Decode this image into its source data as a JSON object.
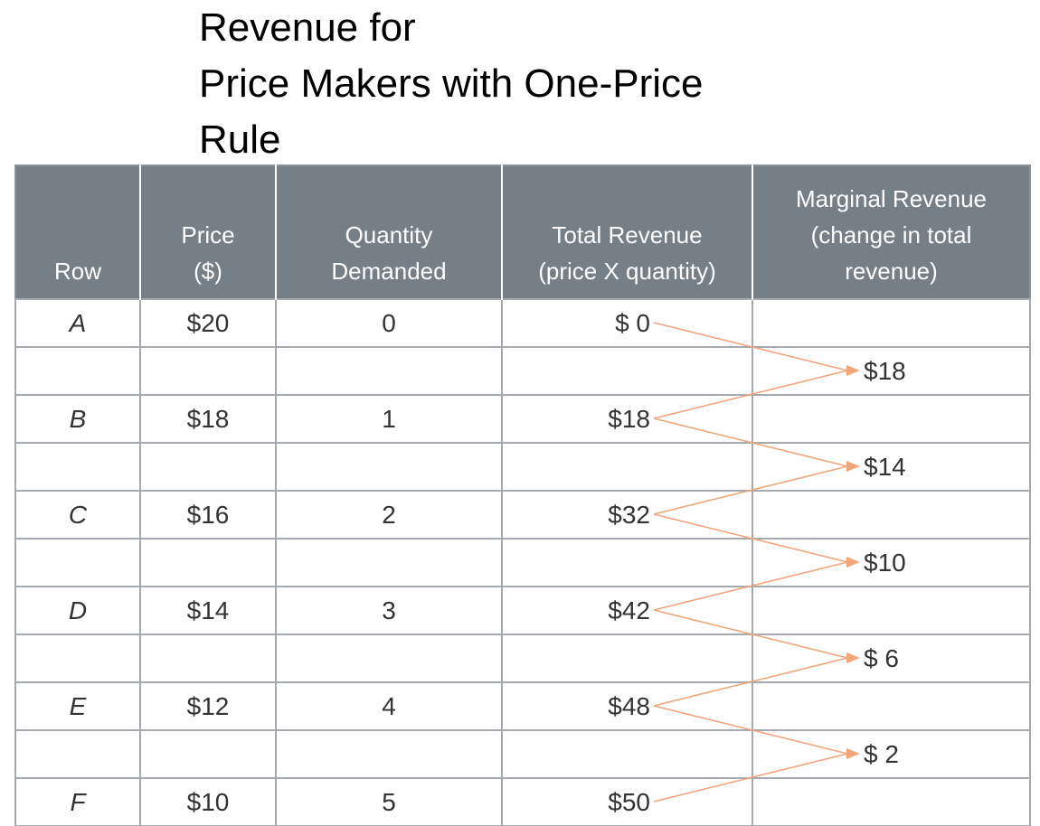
{
  "title": {
    "line1": "Revenue for",
    "line2": "Price Makers with One-Price",
    "line3": "Rule"
  },
  "table": {
    "headers": {
      "row": "Row",
      "price": [
        "Price",
        "($)"
      ],
      "quantity": [
        "Quantity",
        "Demanded"
      ],
      "total_revenue": [
        "Total Revenue",
        "(price X quantity)"
      ],
      "marginal_revenue": [
        "Marginal Revenue",
        "(change in total",
        "revenue)"
      ]
    },
    "rows": [
      {
        "row": "A",
        "price": "$20",
        "quantity": "0",
        "total_revenue": "$ 0"
      },
      {
        "row": "B",
        "price": "$18",
        "quantity": "1",
        "total_revenue": "$18"
      },
      {
        "row": "C",
        "price": "$16",
        "quantity": "2",
        "total_revenue": "$32"
      },
      {
        "row": "D",
        "price": "$14",
        "quantity": "3",
        "total_revenue": "$42"
      },
      {
        "row": "E",
        "price": "$12",
        "quantity": "4",
        "total_revenue": "$48"
      },
      {
        "row": "F",
        "price": "$10",
        "quantity": "5",
        "total_revenue": "$50"
      }
    ],
    "marginal_revenue": [
      "$18",
      "$14",
      "$10",
      "$ 6",
      "$ 2"
    ]
  },
  "colors": {
    "header_bg": "#767f86",
    "arrow": "#f2a57a",
    "grid": "#a4aaaf"
  }
}
